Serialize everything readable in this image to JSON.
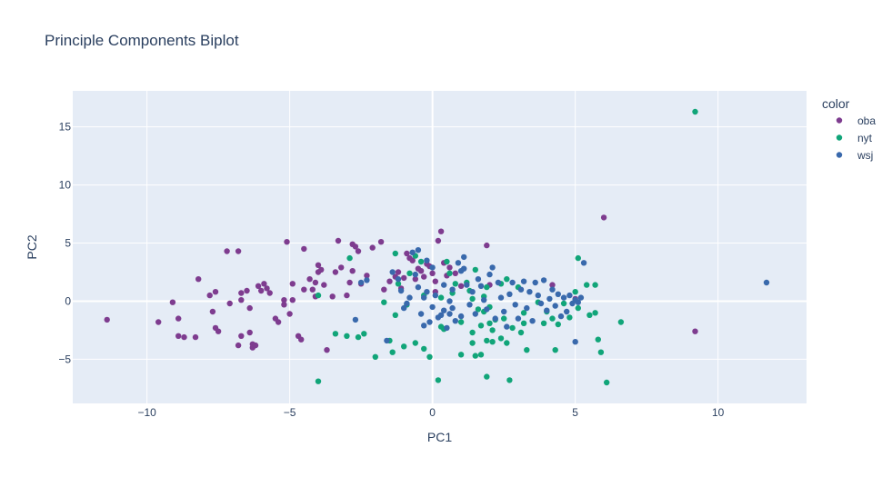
{
  "chart_data": {
    "type": "scatter",
    "title": "Principle Components Biplot",
    "xlabel": "PC1",
    "ylabel": "PC2",
    "xlim": [
      -12.6,
      13.1
    ],
    "ylim": [
      -8.8,
      18.1
    ],
    "x_ticks": [
      -10,
      -5,
      0,
      5,
      10
    ],
    "y_ticks": [
      -5,
      0,
      5,
      10,
      15
    ],
    "x_tick_labels": [
      "−10",
      "−5",
      "0",
      "5",
      "10"
    ],
    "y_tick_labels": [
      "−5",
      "0",
      "5",
      "10",
      "15"
    ],
    "grid": true,
    "legend_title": "color",
    "legend_position": "right",
    "series": [
      {
        "name": "oba",
        "color": "#7e3c8f",
        "points": [
          [
            -11.4,
            -1.6
          ],
          [
            -9.6,
            -1.8
          ],
          [
            -9.1,
            -0.1
          ],
          [
            -8.9,
            -1.5
          ],
          [
            -8.9,
            -3.0
          ],
          [
            -8.7,
            -3.1
          ],
          [
            -8.3,
            -3.1
          ],
          [
            -8.2,
            1.9
          ],
          [
            -7.8,
            0.5
          ],
          [
            -7.6,
            0.8
          ],
          [
            -7.7,
            -0.9
          ],
          [
            -7.6,
            -2.3
          ],
          [
            -7.5,
            -2.6
          ],
          [
            -7.2,
            4.3
          ],
          [
            -6.8,
            4.3
          ],
          [
            -7.1,
            -0.2
          ],
          [
            -6.7,
            0.7
          ],
          [
            -6.7,
            0.1
          ],
          [
            -6.5,
            0.9
          ],
          [
            -6.4,
            -0.6
          ],
          [
            -6.4,
            -2.7
          ],
          [
            -6.3,
            -3.7
          ],
          [
            -6.7,
            -3.0
          ],
          [
            -6.8,
            -3.8
          ],
          [
            -6.3,
            -4.0
          ],
          [
            -6.2,
            -3.8
          ],
          [
            -6.1,
            1.3
          ],
          [
            -6.0,
            0.9
          ],
          [
            -5.9,
            1.5
          ],
          [
            -5.8,
            1.1
          ],
          [
            -5.7,
            0.7
          ],
          [
            -5.5,
            -1.5
          ],
          [
            -5.4,
            -1.8
          ],
          [
            -5.2,
            0.1
          ],
          [
            -5.2,
            -0.3
          ],
          [
            -5.1,
            5.1
          ],
          [
            -5.0,
            -1.1
          ],
          [
            -4.9,
            0.1
          ],
          [
            -4.9,
            1.5
          ],
          [
            -4.7,
            -3.0
          ],
          [
            -4.6,
            -3.3
          ],
          [
            -4.5,
            1.0
          ],
          [
            -4.5,
            4.5
          ],
          [
            -4.3,
            1.9
          ],
          [
            -4.2,
            1.0
          ],
          [
            -4.1,
            0.4
          ],
          [
            -4.1,
            1.6
          ],
          [
            -4.0,
            3.1
          ],
          [
            -4.0,
            2.5
          ],
          [
            -3.9,
            2.7
          ],
          [
            -3.8,
            1.4
          ],
          [
            -3.7,
            -4.2
          ],
          [
            -3.5,
            0.4
          ],
          [
            -3.4,
            2.5
          ],
          [
            -3.3,
            5.2
          ],
          [
            -3.2,
            2.9
          ],
          [
            -3.0,
            0.5
          ],
          [
            -2.8,
            4.9
          ],
          [
            -2.9,
            1.6
          ],
          [
            -2.7,
            4.7
          ],
          [
            -2.8,
            2.6
          ],
          [
            -2.6,
            4.3
          ],
          [
            -2.5,
            1.5
          ],
          [
            -2.3,
            2.2
          ],
          [
            -2.1,
            4.6
          ],
          [
            -1.8,
            5.1
          ],
          [
            -1.7,
            1.0
          ],
          [
            -1.5,
            1.7
          ],
          [
            -1.3,
            2.1
          ],
          [
            -1.2,
            2.5
          ],
          [
            -1.1,
            1.1
          ],
          [
            -1.0,
            2.0
          ],
          [
            -0.9,
            4.1
          ],
          [
            -0.8,
            3.7
          ],
          [
            -0.7,
            3.5
          ],
          [
            -0.6,
            1.9
          ],
          [
            -0.5,
            2.8
          ],
          [
            -0.4,
            2.6
          ],
          [
            -0.3,
            2.1
          ],
          [
            -0.2,
            3.2
          ],
          [
            -0.1,
            3.0
          ],
          [
            0.0,
            2.4
          ],
          [
            0.1,
            1.7
          ],
          [
            0.1,
            0.8
          ],
          [
            0.2,
            5.2
          ],
          [
            0.3,
            6.0
          ],
          [
            0.4,
            3.3
          ],
          [
            0.5,
            2.2
          ],
          [
            0.6,
            2.9
          ],
          [
            0.8,
            2.4
          ],
          [
            1.0,
            1.3
          ],
          [
            1.9,
            4.8
          ],
          [
            2.0,
            1.4
          ],
          [
            4.2,
            1.4
          ],
          [
            5.0,
            0.2
          ],
          [
            6.0,
            7.2
          ],
          [
            9.2,
            -2.6
          ]
        ]
      },
      {
        "name": "nyt",
        "color": "#11a579",
        "points": [
          [
            -4.0,
            -6.9
          ],
          [
            -4.0,
            0.5
          ],
          [
            -3.4,
            -2.8
          ],
          [
            -3.0,
            -3.0
          ],
          [
            -2.9,
            3.7
          ],
          [
            -2.6,
            -3.1
          ],
          [
            -2.4,
            -2.8
          ],
          [
            -2.0,
            -4.8
          ],
          [
            -1.7,
            -0.1
          ],
          [
            -1.5,
            -3.4
          ],
          [
            -1.4,
            -4.4
          ],
          [
            -1.3,
            4.1
          ],
          [
            -1.3,
            -1.2
          ],
          [
            -1.2,
            1.5
          ],
          [
            -1.0,
            -3.9
          ],
          [
            -0.9,
            -0.3
          ],
          [
            -0.8,
            2.4
          ],
          [
            -0.6,
            3.9
          ],
          [
            -0.6,
            -3.6
          ],
          [
            -0.4,
            3.4
          ],
          [
            -0.3,
            0.5
          ],
          [
            -0.3,
            -4.1
          ],
          [
            -0.1,
            -4.8
          ],
          [
            0.2,
            -6.8
          ],
          [
            0.3,
            0.3
          ],
          [
            0.3,
            -2.2
          ],
          [
            0.4,
            -2.4
          ],
          [
            0.5,
            3.4
          ],
          [
            0.6,
            2.4
          ],
          [
            0.7,
            0.7
          ],
          [
            0.8,
            1.5
          ],
          [
            1.0,
            -1.8
          ],
          [
            1.0,
            -4.6
          ],
          [
            1.2,
            1.6
          ],
          [
            1.3,
            0.9
          ],
          [
            1.4,
            0.2
          ],
          [
            1.4,
            -3.6
          ],
          [
            1.4,
            -2.7
          ],
          [
            1.5,
            -4.7
          ],
          [
            1.5,
            2.7
          ],
          [
            1.6,
            -0.7
          ],
          [
            1.7,
            -2.1
          ],
          [
            1.7,
            -4.6
          ],
          [
            1.8,
            -0.9
          ],
          [
            1.8,
            0.4
          ],
          [
            1.9,
            -3.4
          ],
          [
            1.9,
            1.2
          ],
          [
            1.9,
            -6.5
          ],
          [
            2.0,
            -1.9
          ],
          [
            2.0,
            -0.5
          ],
          [
            2.1,
            -2.5
          ],
          [
            2.1,
            -3.5
          ],
          [
            2.2,
            -1.6
          ],
          [
            2.4,
            1.5
          ],
          [
            2.4,
            -3.2
          ],
          [
            2.5,
            -1.5
          ],
          [
            2.6,
            -3.6
          ],
          [
            2.6,
            1.9
          ],
          [
            2.7,
            -6.8
          ],
          [
            2.8,
            -2.3
          ],
          [
            3.0,
            1.2
          ],
          [
            3.1,
            -2.7
          ],
          [
            3.2,
            -1.0
          ],
          [
            3.2,
            -1.9
          ],
          [
            3.3,
            -4.2
          ],
          [
            3.7,
            -0.1
          ],
          [
            3.9,
            -1.9
          ],
          [
            4.0,
            -0.9
          ],
          [
            4.2,
            -1.5
          ],
          [
            4.4,
            -2.0
          ],
          [
            4.3,
            -4.2
          ],
          [
            4.6,
            -0.2
          ],
          [
            4.8,
            -1.4
          ],
          [
            5.0,
            0.8
          ],
          [
            5.1,
            -0.6
          ],
          [
            5.1,
            3.7
          ],
          [
            5.4,
            1.4
          ],
          [
            5.5,
            -1.2
          ],
          [
            5.7,
            -1.0
          ],
          [
            5.7,
            1.4
          ],
          [
            5.8,
            -3.3
          ],
          [
            5.9,
            -4.4
          ],
          [
            6.1,
            -7.0
          ],
          [
            6.6,
            -1.8
          ],
          [
            9.2,
            16.3
          ]
        ]
      },
      {
        "name": "wsj",
        "color": "#3969ac",
        "points": [
          [
            -2.7,
            -1.6
          ],
          [
            -2.5,
            1.6
          ],
          [
            -2.3,
            1.8
          ],
          [
            -1.6,
            -3.4
          ],
          [
            -1.4,
            2.5
          ],
          [
            -1.2,
            1.9
          ],
          [
            -1.1,
            0.9
          ],
          [
            -1.0,
            -0.6
          ],
          [
            -0.9,
            -0.2
          ],
          [
            -0.8,
            0.3
          ],
          [
            -0.7,
            4.2
          ],
          [
            -0.6,
            2.3
          ],
          [
            -0.5,
            4.4
          ],
          [
            -0.5,
            1.2
          ],
          [
            -0.4,
            -1.1
          ],
          [
            -0.3,
            0.3
          ],
          [
            -0.3,
            -2.1
          ],
          [
            -0.2,
            3.5
          ],
          [
            -0.2,
            0.8
          ],
          [
            -0.1,
            -1.8
          ],
          [
            0.0,
            2.9
          ],
          [
            0.0,
            -0.5
          ],
          [
            0.1,
            0.5
          ],
          [
            0.2,
            -1.4
          ],
          [
            0.3,
            -1.2
          ],
          [
            0.4,
            1.4
          ],
          [
            0.4,
            -0.8
          ],
          [
            0.5,
            -2.3
          ],
          [
            0.6,
            -1.1
          ],
          [
            0.6,
            0.0
          ],
          [
            0.7,
            1.0
          ],
          [
            0.7,
            -0.6
          ],
          [
            0.8,
            -1.7
          ],
          [
            0.9,
            3.3
          ],
          [
            1.0,
            2.6
          ],
          [
            1.0,
            -1.3
          ],
          [
            1.1,
            2.8
          ],
          [
            1.1,
            3.8
          ],
          [
            1.2,
            1.4
          ],
          [
            1.3,
            -0.3
          ],
          [
            1.4,
            0.8
          ],
          [
            1.5,
            -1.1
          ],
          [
            1.6,
            1.9
          ],
          [
            1.7,
            1.3
          ],
          [
            1.8,
            0.1
          ],
          [
            1.9,
            -0.7
          ],
          [
            2.0,
            2.3
          ],
          [
            2.1,
            2.9
          ],
          [
            2.2,
            -1.5
          ],
          [
            2.3,
            1.6
          ],
          [
            2.4,
            0.3
          ],
          [
            2.5,
            -0.9
          ],
          [
            2.6,
            -2.2
          ],
          [
            2.7,
            0.6
          ],
          [
            2.8,
            1.6
          ],
          [
            2.9,
            -0.3
          ],
          [
            3.0,
            -1.5
          ],
          [
            3.1,
            1.0
          ],
          [
            3.2,
            1.7
          ],
          [
            3.3,
            -0.6
          ],
          [
            3.4,
            0.8
          ],
          [
            3.5,
            -1.7
          ],
          [
            3.6,
            1.6
          ],
          [
            3.7,
            0.5
          ],
          [
            3.8,
            -0.2
          ],
          [
            3.9,
            1.8
          ],
          [
            4.0,
            -0.8
          ],
          [
            4.1,
            0.2
          ],
          [
            4.2,
            1.0
          ],
          [
            4.3,
            -0.4
          ],
          [
            4.4,
            0.6
          ],
          [
            4.5,
            -1.3
          ],
          [
            4.6,
            0.3
          ],
          [
            4.7,
            -0.9
          ],
          [
            4.8,
            0.5
          ],
          [
            4.9,
            -0.2
          ],
          [
            5.0,
            0.1
          ],
          [
            5.1,
            -0.1
          ],
          [
            5.2,
            0.3
          ],
          [
            5.3,
            3.3
          ],
          [
            5.0,
            -3.5
          ],
          [
            11.7,
            1.6
          ]
        ]
      }
    ]
  }
}
